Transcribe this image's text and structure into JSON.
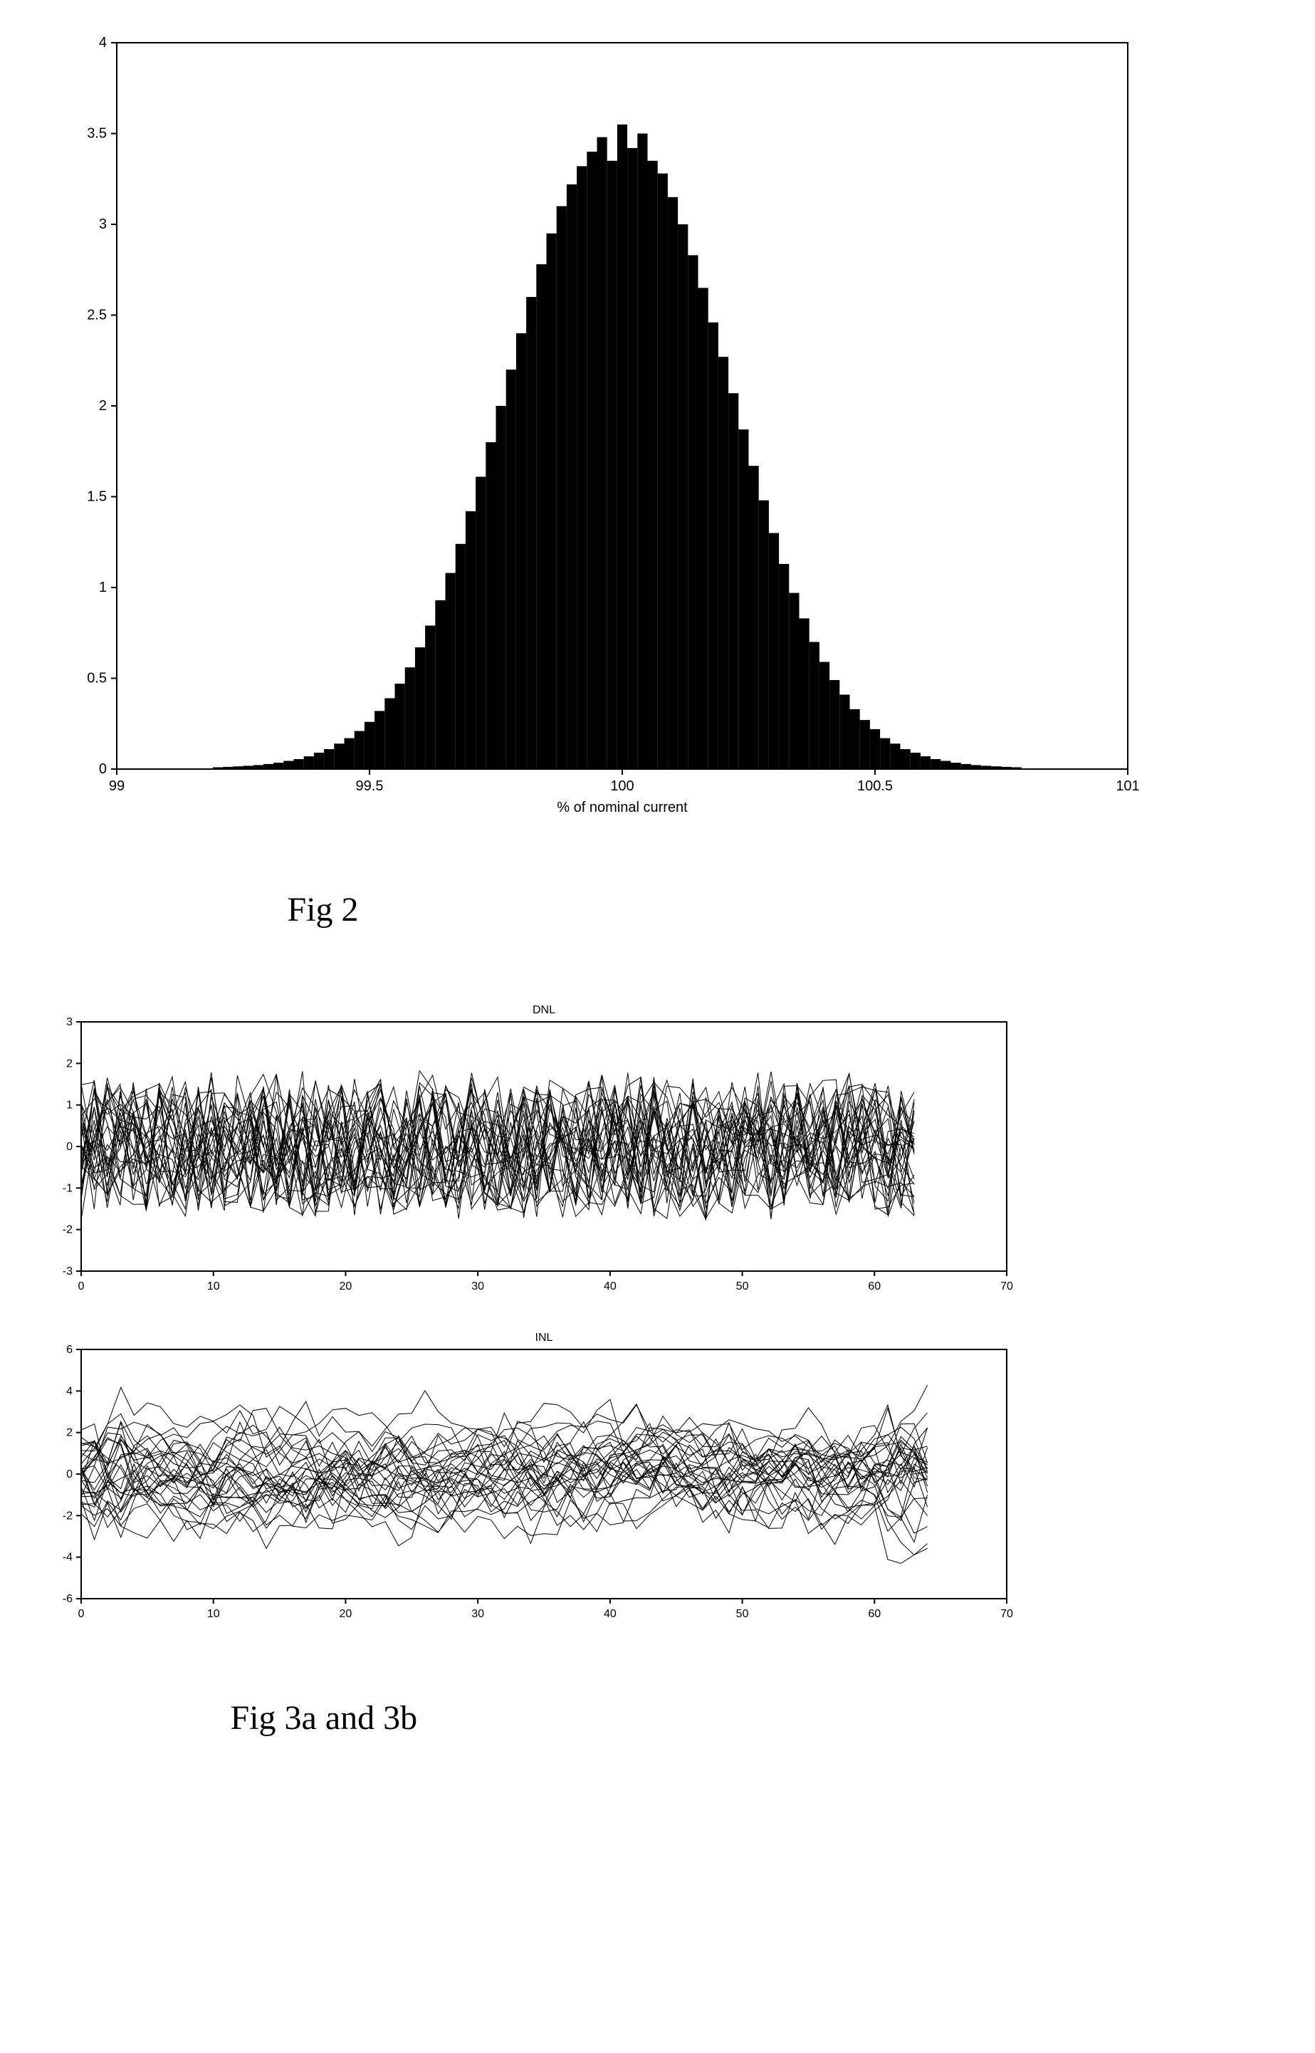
{
  "fig2": {
    "type": "histogram",
    "caption": "Fig 2",
    "xlabel": "% of nominal current",
    "xlim": [
      99,
      101
    ],
    "xticks": [
      99,
      99.5,
      100,
      100.5,
      101
    ],
    "ylim": [
      0,
      4
    ],
    "yticks": [
      0,
      0.5,
      1,
      1.5,
      2,
      2.5,
      3,
      3.5,
      4
    ],
    "bar_color": "#000000",
    "background_color": "#ffffff",
    "axis_color": "#000000",
    "label_fontsize": 20,
    "bins": [
      {
        "x": 99.2,
        "h": 0.01
      },
      {
        "x": 99.22,
        "h": 0.012
      },
      {
        "x": 99.24,
        "h": 0.015
      },
      {
        "x": 99.26,
        "h": 0.018
      },
      {
        "x": 99.28,
        "h": 0.022
      },
      {
        "x": 99.3,
        "h": 0.028
      },
      {
        "x": 99.32,
        "h": 0.035
      },
      {
        "x": 99.34,
        "h": 0.045
      },
      {
        "x": 99.36,
        "h": 0.055
      },
      {
        "x": 99.38,
        "h": 0.07
      },
      {
        "x": 99.4,
        "h": 0.09
      },
      {
        "x": 99.42,
        "h": 0.11
      },
      {
        "x": 99.44,
        "h": 0.14
      },
      {
        "x": 99.46,
        "h": 0.17
      },
      {
        "x": 99.48,
        "h": 0.21
      },
      {
        "x": 99.5,
        "h": 0.26
      },
      {
        "x": 99.52,
        "h": 0.32
      },
      {
        "x": 99.54,
        "h": 0.39
      },
      {
        "x": 99.56,
        "h": 0.47
      },
      {
        "x": 99.58,
        "h": 0.56
      },
      {
        "x": 99.6,
        "h": 0.67
      },
      {
        "x": 99.62,
        "h": 0.79
      },
      {
        "x": 99.64,
        "h": 0.93
      },
      {
        "x": 99.66,
        "h": 1.08
      },
      {
        "x": 99.68,
        "h": 1.24
      },
      {
        "x": 99.7,
        "h": 1.42
      },
      {
        "x": 99.72,
        "h": 1.61
      },
      {
        "x": 99.74,
        "h": 1.8
      },
      {
        "x": 99.76,
        "h": 2.0
      },
      {
        "x": 99.78,
        "h": 2.2
      },
      {
        "x": 99.8,
        "h": 2.4
      },
      {
        "x": 99.82,
        "h": 2.6
      },
      {
        "x": 99.84,
        "h": 2.78
      },
      {
        "x": 99.86,
        "h": 2.95
      },
      {
        "x": 99.88,
        "h": 3.1
      },
      {
        "x": 99.9,
        "h": 3.22
      },
      {
        "x": 99.92,
        "h": 3.32
      },
      {
        "x": 99.94,
        "h": 3.4
      },
      {
        "x": 99.96,
        "h": 3.48
      },
      {
        "x": 99.98,
        "h": 3.35
      },
      {
        "x": 100.0,
        "h": 3.55
      },
      {
        "x": 100.02,
        "h": 3.42
      },
      {
        "x": 100.04,
        "h": 3.5
      },
      {
        "x": 100.06,
        "h": 3.35
      },
      {
        "x": 100.08,
        "h": 3.28
      },
      {
        "x": 100.1,
        "h": 3.15
      },
      {
        "x": 100.12,
        "h": 3.0
      },
      {
        "x": 100.14,
        "h": 2.83
      },
      {
        "x": 100.16,
        "h": 2.65
      },
      {
        "x": 100.18,
        "h": 2.46
      },
      {
        "x": 100.2,
        "h": 2.27
      },
      {
        "x": 100.22,
        "h": 2.07
      },
      {
        "x": 100.24,
        "h": 1.87
      },
      {
        "x": 100.26,
        "h": 1.67
      },
      {
        "x": 100.28,
        "h": 1.48
      },
      {
        "x": 100.3,
        "h": 1.3
      },
      {
        "x": 100.32,
        "h": 1.13
      },
      {
        "x": 100.34,
        "h": 0.97
      },
      {
        "x": 100.36,
        "h": 0.83
      },
      {
        "x": 100.38,
        "h": 0.7
      },
      {
        "x": 100.4,
        "h": 0.59
      },
      {
        "x": 100.42,
        "h": 0.49
      },
      {
        "x": 100.44,
        "h": 0.41
      },
      {
        "x": 100.46,
        "h": 0.33
      },
      {
        "x": 100.48,
        "h": 0.27
      },
      {
        "x": 100.5,
        "h": 0.22
      },
      {
        "x": 100.52,
        "h": 0.17
      },
      {
        "x": 100.54,
        "h": 0.14
      },
      {
        "x": 100.56,
        "h": 0.11
      },
      {
        "x": 100.58,
        "h": 0.09
      },
      {
        "x": 100.6,
        "h": 0.07
      },
      {
        "x": 100.62,
        "h": 0.055
      },
      {
        "x": 100.64,
        "h": 0.045
      },
      {
        "x": 100.66,
        "h": 0.035
      },
      {
        "x": 100.68,
        "h": 0.028
      },
      {
        "x": 100.7,
        "h": 0.022
      },
      {
        "x": 100.72,
        "h": 0.018
      },
      {
        "x": 100.74,
        "h": 0.015
      },
      {
        "x": 100.76,
        "h": 0.012
      },
      {
        "x": 100.78,
        "h": 0.01
      }
    ],
    "bin_width": 0.02
  },
  "fig3a": {
    "type": "line",
    "title": "DNL",
    "xlim": [
      0,
      70
    ],
    "xticks": [
      0,
      10,
      20,
      30,
      40,
      50,
      60,
      70
    ],
    "ylim": [
      -3,
      3
    ],
    "yticks": [
      -3,
      -2,
      -1,
      0,
      1,
      2,
      3
    ],
    "line_color": "#000000",
    "background_color": "#ffffff",
    "n_traces": 30,
    "n_points": 64,
    "amplitude_base": 1.6,
    "amplitude_jitter": 0.6,
    "x_data_max": 63
  },
  "fig3b": {
    "type": "line",
    "title": "INL",
    "xlim": [
      0,
      70
    ],
    "xticks": [
      0,
      10,
      20,
      30,
      40,
      50,
      60,
      70
    ],
    "ylim": [
      -6,
      6
    ],
    "yticks": [
      -6,
      -4,
      -2,
      0,
      2,
      4,
      6
    ],
    "line_color": "#000000",
    "background_color": "#ffffff",
    "n_traces": 30,
    "n_points": 64,
    "amplitude_base": 3.0,
    "amplitude_jitter": 1.5,
    "x_data_max": 64,
    "edge_flare": 1.6
  },
  "caption3": "Fig 3a and 3b"
}
